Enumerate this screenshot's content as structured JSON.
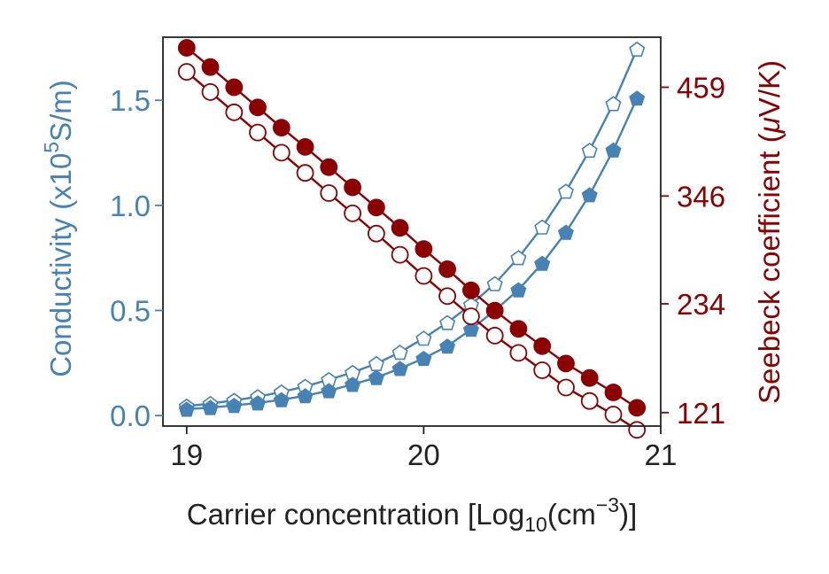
{
  "colors": {
    "conductivity": "#4682b4",
    "seebeck": "#8b0000",
    "axis": "#222222"
  },
  "chart_data": {
    "type": "line",
    "dual_axis": true,
    "grid": false,
    "x": [
      19.0,
      19.1,
      19.2,
      19.3,
      19.4,
      19.5,
      19.6,
      19.7,
      19.8,
      19.9,
      20.0,
      20.1,
      20.2,
      20.3,
      20.4,
      20.5,
      20.6,
      20.7,
      20.8,
      20.9
    ],
    "xlim": [
      18.9,
      21.0
    ],
    "xticks": [
      19,
      20,
      21
    ],
    "xlabel_main": "Carrier concentration [Log",
    "xlabel_sub": "10",
    "xlabel_mid": "(cm",
    "xlabel_sup": "−3",
    "xlabel_end": ")]",
    "left_axis": {
      "label_main": "Conductivity (x10",
      "label_sup": "5",
      "label_end": "S/m)",
      "ylim": [
        -0.05,
        1.8
      ],
      "ticks": [
        0.0,
        0.5,
        1.0,
        1.5
      ],
      "tick_labels": [
        "0.0",
        "0.5",
        "1.0",
        "1.5"
      ]
    },
    "right_axis": {
      "label_main": "Seebeck coefficient (",
      "label_mu": "μ",
      "label_end": "V/K)",
      "ylim": [
        107,
        511
      ],
      "ticks": [
        121,
        234,
        346,
        459
      ],
      "tick_labels": [
        "121",
        "234",
        "346",
        "459"
      ]
    },
    "series": [
      {
        "axis": "left",
        "marker": "pentagon",
        "filled": false,
        "values": [
          0.045,
          0.057,
          0.072,
          0.09,
          0.112,
          0.139,
          0.171,
          0.205,
          0.247,
          0.301,
          0.368,
          0.442,
          0.528,
          0.627,
          0.751,
          0.897,
          1.067,
          1.262,
          1.484,
          1.743
        ]
      },
      {
        "axis": "left",
        "marker": "pentagon",
        "filled": true,
        "values": [
          0.03,
          0.038,
          0.048,
          0.06,
          0.075,
          0.094,
          0.118,
          0.148,
          0.181,
          0.224,
          0.272,
          0.33,
          0.41,
          0.5,
          0.598,
          0.724,
          0.872,
          1.05,
          1.263,
          1.51
        ]
      },
      {
        "axis": "right",
        "marker": "circle",
        "filled": false,
        "values": [
          475,
          454,
          433,
          412,
          391,
          370,
          349,
          328,
          307,
          285,
          263,
          242,
          221,
          201,
          183,
          165,
          147,
          133,
          119,
          103
        ]
      },
      {
        "axis": "right",
        "marker": "circle",
        "filled": true,
        "values": [
          500,
          480,
          459,
          438,
          417,
          397,
          376,
          355,
          334,
          313,
          291,
          270,
          248,
          227,
          208,
          190,
          172,
          157,
          142,
          126
        ]
      }
    ]
  }
}
